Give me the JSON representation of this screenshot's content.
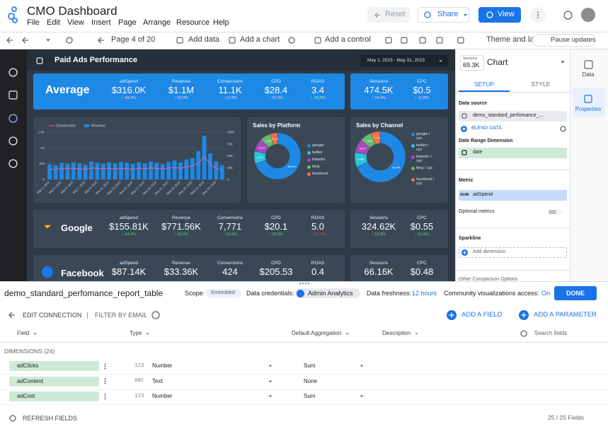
{
  "header": {
    "title": "CMO Dashboard",
    "menu": [
      "File",
      "Edit",
      "View",
      "Insert",
      "Page",
      "Arrange",
      "Resource",
      "Help"
    ],
    "reset": "Reset",
    "share": "Share",
    "view": "View"
  },
  "toolbar": {
    "page": "Page 4 of 20",
    "add_data": "Add data",
    "add_chart": "Add a chart",
    "add_control": "Add a control",
    "theme": "Theme and layout",
    "pause": "Pause updates"
  },
  "report": {
    "title": "Paid Ads Performance",
    "date_range": "May 1, 2023 - May 31, 2023",
    "rows": [
      {
        "label": "Average",
        "metrics": [
          {
            "name": "adSpend",
            "value": "$316.0K",
            "delta": "↑ 43.2%"
          },
          {
            "name": "Revenue",
            "value": "$1.1M",
            "delta": "↑ 16.8%"
          },
          {
            "name": "Conversions",
            "value": "11.1K",
            "delta": "↑ 17.8%"
          },
          {
            "name": "CPD",
            "value": "$28.4",
            "delta": "↑ 21.6%"
          },
          {
            "name": "ROAS",
            "value": "3.4",
            "delta": "↓ -13.5%"
          }
        ],
        "side": [
          {
            "name": "Sessions",
            "value": "474.5K",
            "delta": "↑ 19.4%"
          },
          {
            "name": "CPC",
            "value": "$0.5",
            "delta": "↑ 11.8%"
          }
        ]
      },
      {
        "label": "Google",
        "metrics": [
          {
            "name": "adSpend",
            "value": "$155.81K",
            "delta": "↑ 44.2%"
          },
          {
            "name": "Revenue",
            "value": "$771.56K",
            "delta": "↑ 18.6%"
          },
          {
            "name": "Conversions",
            "value": "7,771",
            "delta": "↑ 19.6%"
          },
          {
            "name": "CPD",
            "value": "$20.1",
            "delta": "↑ 20.5%"
          },
          {
            "name": "ROAS",
            "value": "5.0",
            "delta": "↓ -17.7%"
          }
        ],
        "side": [
          {
            "name": "Sessions",
            "value": "324.62K",
            "delta": "↑ 12.8%"
          },
          {
            "name": "CPC",
            "value": "$0.55",
            "delta": "↑ 21.8%"
          }
        ]
      },
      {
        "label": "Facebook",
        "metrics": [
          {
            "name": "adSpend",
            "value": "$87.14K"
          },
          {
            "name": "Revenue",
            "value": "$33.36K"
          },
          {
            "name": "Conversions",
            "value": "424"
          },
          {
            "name": "CPD",
            "value": "$205.53"
          },
          {
            "name": "ROAS",
            "value": "0.4"
          }
        ],
        "side": [
          {
            "name": "Sessions",
            "value": "66.16K"
          },
          {
            "name": "CPC",
            "value": "$0.48"
          }
        ]
      }
    ]
  },
  "chart_data": [
    {
      "type": "combo",
      "categories": [
        "May 1, 2023",
        null,
        "May 3, 2023",
        null,
        "May 5, 2023",
        null,
        "May 7, 2023",
        null,
        "May 9, 2023",
        null,
        "May 11, 2023",
        null,
        "May 13, 2023",
        null,
        "May 15, 2023",
        null,
        "May 17, 2023",
        null,
        "May 19, 2023",
        null,
        "May 21, 2023",
        null,
        "May 23, 2023",
        null,
        "May 25, 2023",
        null,
        "May 27, 2023",
        null,
        "May 29, 2023",
        null
      ],
      "series": [
        {
          "name": "Conversions",
          "type": "line",
          "color": "#f06292",
          "values": [
            330,
            320,
            350,
            340,
            360,
            330,
            320,
            370,
            350,
            340,
            360,
            330,
            350,
            340,
            330,
            360,
            340,
            370,
            350,
            330,
            360,
            380,
            350,
            400,
            420,
            520,
            720,
            480,
            360,
            300
          ]
        },
        {
          "name": "Revenue",
          "type": "bar",
          "axis": "y2",
          "color": "#1e88e5",
          "values": [
            32000,
            30000,
            35000,
            33000,
            36000,
            34000,
            31000,
            38000,
            35000,
            33000,
            36000,
            34000,
            37000,
            35000,
            33000,
            36000,
            34000,
            38000,
            35000,
            32000,
            37000,
            40000,
            36000,
            42000,
            45000,
            60000,
            92000,
            55000,
            38000,
            30000
          ]
        }
      ],
      "ylim": [
        0,
        1500
      ],
      "yticks": [
        0,
        500,
        {
          "value": 1000,
          "label": "1K"
        },
        {
          "value": 1500,
          "label": "1.5K"
        }
      ],
      "y2lim": [
        0,
        100000
      ],
      "y2ticks": [
        0,
        {
          "value": 25000,
          "label": "25K"
        },
        {
          "value": 50000,
          "label": "50K"
        },
        {
          "value": 75000,
          "label": "75K"
        },
        {
          "value": 100000,
          "label": "100K"
        }
      ],
      "grid": true
    },
    {
      "type": "donut",
      "title": "Sales by Platform",
      "categories": [
        "google",
        "twitter",
        "linkedin",
        "bing",
        "facebook"
      ],
      "values": [
        69.6,
        8.9,
        9.1,
        7.3,
        5.1
      ],
      "value_labels": [
        "69.6%",
        "8.9%",
        "9.1%",
        "7.3%",
        "5.1%"
      ],
      "colors": [
        "#1e88e5",
        "#26c6da",
        "#ab47bc",
        "#66bb6a",
        "#ff7043"
      ]
    },
    {
      "type": "donut",
      "title": "Sales by Channel",
      "categories": [
        "google / cpc",
        "twitter / cpc",
        "linkedin / cpc",
        "bing / cpc",
        "facebook / cpc"
      ],
      "values": [
        68.4,
        9.5,
        8.8,
        7.6,
        5.7
      ],
      "value_labels": [
        "68.4%",
        "9.5%",
        "8.8%",
        "7.6%",
        "5.7%"
      ],
      "colors": [
        "#1e88e5",
        "#26c6da",
        "#ab47bc",
        "#66bb6a",
        "#ff7043"
      ]
    }
  ],
  "panel": {
    "mini_label": "Sessions",
    "mini_value": "69.3K",
    "title": "Chart",
    "tabs": [
      "SETUP",
      "STYLE"
    ],
    "data_source_label": "Data source",
    "data_source": "demo_standard_perfomance_...",
    "blend": "BLEND DATA",
    "date_dim_label": "Date Range Dimension",
    "date_dim": "date",
    "metric_label": "Metric",
    "metric_agg": "SUM",
    "metric": "adSpend",
    "optional_metrics": "Optional metrics",
    "sparkline": "Sparkline",
    "add_dimension": "Add dimension",
    "other": "Other Comparison Options"
  },
  "rail": {
    "data": "Data",
    "properties": "Properties"
  },
  "data_panel": {
    "table_name": "demo_standard_perfomance_report_table",
    "scope_label": "Scope:",
    "scope": "Embedded",
    "credentials_label": "Data credentials:",
    "credentials": "Admin Analytics",
    "freshness_label": "Data freshness:",
    "freshness": "12 hours",
    "community_label": "Community visualizations access:",
    "community": "On",
    "done": "DONE",
    "edit_connection": "EDIT CONNECTION",
    "filter": "FILTER BY EMAIL",
    "add_field": "ADD A FIELD",
    "add_parameter": "ADD A PARAMETER",
    "columns": [
      "Field",
      "Type",
      "Default Aggregation",
      "Description"
    ],
    "search": "Search fields",
    "section": "DIMENSIONS (24)",
    "fields": [
      {
        "name": "adClicks",
        "type_icon": "123",
        "type": "Number",
        "aggregation": "Sum"
      },
      {
        "name": "adContent",
        "type_icon": "ABC",
        "type": "Text",
        "aggregation": "None"
      },
      {
        "name": "adCost",
        "type_icon": "123",
        "type": "Number",
        "aggregation": "Sum"
      }
    ],
    "refresh": "REFRESH FIELDS",
    "count": "25 / 25 Fields"
  }
}
